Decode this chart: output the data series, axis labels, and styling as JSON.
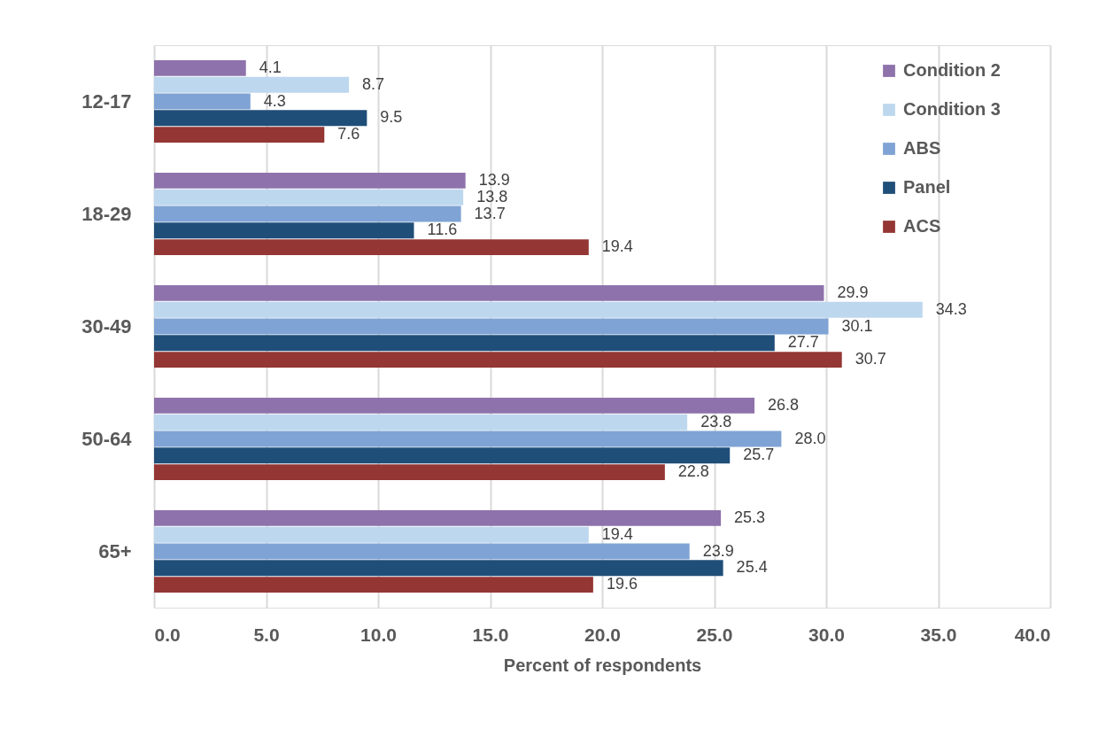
{
  "chart_data": {
    "type": "bar",
    "orientation": "horizontal",
    "xlabel": "Percent of respondents",
    "categories": [
      "12-17",
      "18-29",
      "30-49",
      "50-64",
      "65+"
    ],
    "series": [
      {
        "name": "Condition 2",
        "color": "#8e72ac",
        "values": [
          4.1,
          13.9,
          29.9,
          26.8,
          25.3
        ],
        "value_labels": [
          "4.1",
          "13.9",
          "29.9",
          "26.8",
          "25.3"
        ]
      },
      {
        "name": "Condition 3",
        "color": "#bdd7ee",
        "values": [
          8.7,
          13.8,
          34.3,
          23.8,
          19.4
        ],
        "value_labels": [
          "8.7",
          "13.8",
          "34.3",
          "23.8",
          "19.4"
        ]
      },
      {
        "name": "ABS",
        "color": "#7fa3d4",
        "values": [
          4.3,
          13.7,
          30.1,
          28.0,
          23.9
        ],
        "value_labels": [
          "4.3",
          "13.7",
          "30.1",
          "28.0",
          "23.9"
        ]
      },
      {
        "name": "Panel",
        "color": "#1f4e79",
        "values": [
          9.5,
          11.6,
          27.7,
          25.7,
          25.4
        ],
        "value_labels": [
          "9.5",
          "11.6",
          "27.7",
          "25.7",
          "25.4"
        ]
      },
      {
        "name": "ACS",
        "color": "#943634",
        "values": [
          7.6,
          19.4,
          30.7,
          22.8,
          19.6
        ],
        "value_labels": [
          "7.6",
          "19.4",
          "30.7",
          "22.8",
          "19.6"
        ]
      }
    ],
    "xlim": [
      0,
      40
    ],
    "xticks": [
      {
        "value": 0,
        "label": "0.0"
      },
      {
        "value": 5,
        "label": "5.0"
      },
      {
        "value": 10,
        "label": "10.0"
      },
      {
        "value": 15,
        "label": "15.0"
      },
      {
        "value": 20,
        "label": "20.0"
      },
      {
        "value": 25,
        "label": "25.0"
      },
      {
        "value": 30,
        "label": "30.0"
      },
      {
        "value": 35,
        "label": "35.0"
      },
      {
        "value": 40,
        "label": "40.0"
      }
    ],
    "grid": "x",
    "legend": "top right"
  }
}
